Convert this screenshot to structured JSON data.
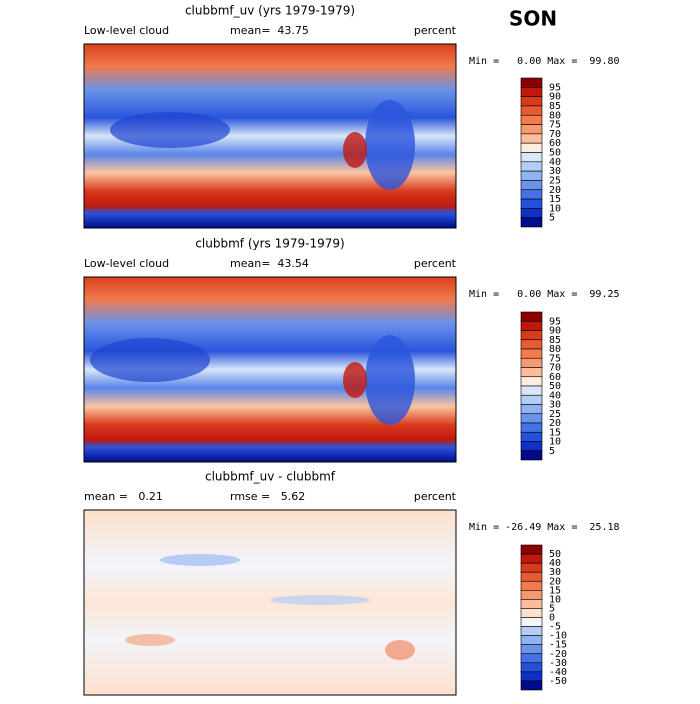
{
  "title": "SON",
  "panels": [
    {
      "title": "clubbmf_uv (yrs 1979-1979)",
      "left": "Low-level cloud",
      "center": "mean=  43.75",
      "right": "percent",
      "stats": "Min =   0.00 Max =  99.80",
      "colorbar": {
        "labels": [
          95,
          90,
          85,
          80,
          75,
          70,
          60,
          50,
          40,
          30,
          25,
          20,
          15,
          10,
          5
        ],
        "colors": [
          "#8c0000",
          "#c0180c",
          "#d83a1c",
          "#e85a32",
          "#f27a4c",
          "#f59a70",
          "#f9bd9a",
          "#fdece0",
          "#d8e6f8",
          "#b4cdf5",
          "#8fb2f0",
          "#6a93ea",
          "#4471e6",
          "#2350dc",
          "#1030c8",
          "#000a8c"
        ]
      }
    },
    {
      "title": "clubbmf (yrs 1979-1979)",
      "left": "Low-level cloud",
      "center": "mean=  43.54",
      "right": "percent",
      "stats": "Min =   0.00 Max =  99.25",
      "colorbar": {
        "labels": [
          95,
          90,
          85,
          80,
          75,
          70,
          60,
          50,
          40,
          30,
          25,
          20,
          15,
          10,
          5
        ],
        "colors": [
          "#8c0000",
          "#c0180c",
          "#d83a1c",
          "#e85a32",
          "#f27a4c",
          "#f59a70",
          "#f9bd9a",
          "#fdece0",
          "#d8e6f8",
          "#b4cdf5",
          "#8fb2f0",
          "#6a93ea",
          "#4471e6",
          "#2350dc",
          "#1030c8",
          "#000a8c"
        ]
      }
    },
    {
      "title": "clubbmf_uv - clubbmf",
      "left": "mean =   0.21",
      "center": "rmse =   5.62",
      "right": "percent",
      "stats": "Min = -26.49 Max =  25.18",
      "colorbar": {
        "labels": [
          50,
          40,
          30,
          20,
          15,
          10,
          5,
          0,
          -5,
          -10,
          -15,
          -20,
          -30,
          -40,
          -50
        ],
        "colors": [
          "#8c0000",
          "#c0180c",
          "#d83a1c",
          "#e85a32",
          "#f27a4c",
          "#f59a70",
          "#f9bd9a",
          "#fde0cc",
          "#f2f4fa",
          "#b4cdf5",
          "#8fb2f0",
          "#6a93ea",
          "#4471e6",
          "#2350dc",
          "#1030c8",
          "#000a8c"
        ]
      }
    }
  ]
}
